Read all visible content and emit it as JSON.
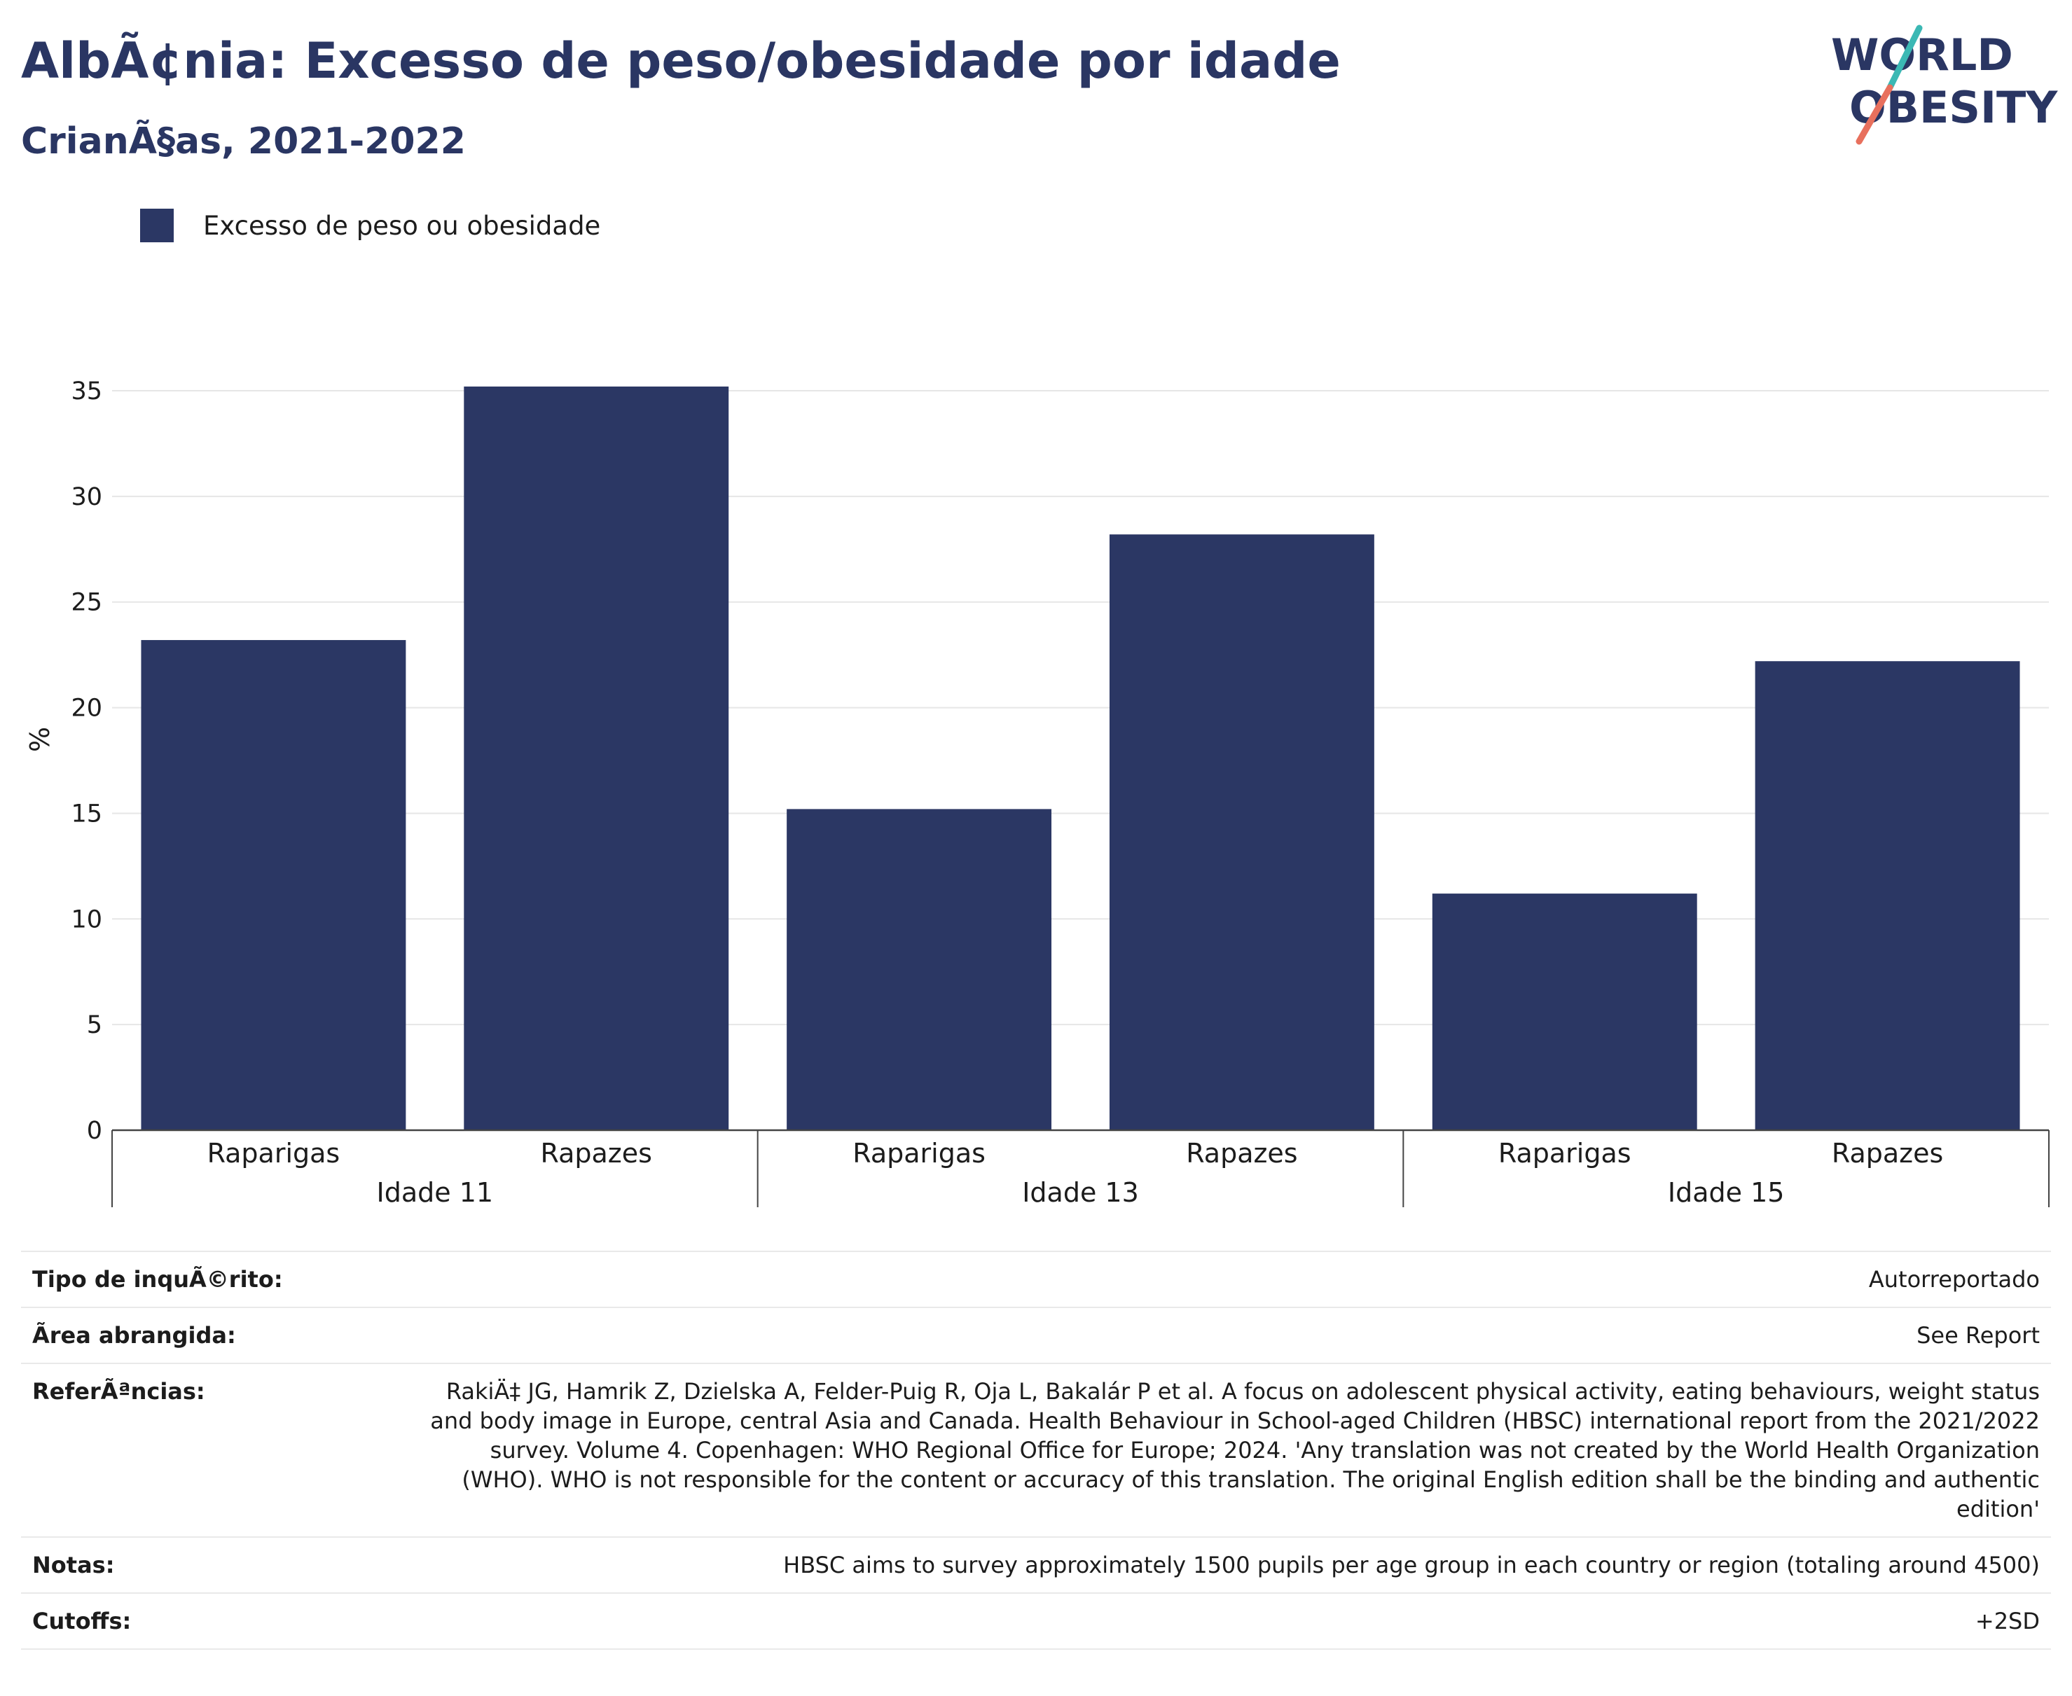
{
  "header": {
    "title": "AlbÃ¢nia: Excesso de peso/obesidade por idade",
    "subtitle": "CrianÃ§as, 2021-2022"
  },
  "logo": {
    "line1": "WORLD",
    "line2": "OBESITY"
  },
  "colors": {
    "bar": "#2b3764",
    "title": "#2a3663",
    "logo_teal": "#3bb8b4",
    "logo_coral": "#e8705d",
    "grid": "#e6e6e6",
    "axis": "#444444"
  },
  "legend": {
    "label": "Excesso de peso ou obesidade"
  },
  "chart_data": {
    "type": "bar",
    "ylabel": "%",
    "ylim": [
      0,
      35.2
    ],
    "yticks": [
      0,
      5,
      10,
      15,
      20,
      25,
      30,
      35
    ],
    "grid": true,
    "legend_position": "top-left",
    "groups": [
      {
        "label": "Idade 11",
        "categories": [
          "Raparigas",
          "Rapazes"
        ],
        "values": [
          23.2,
          35.2
        ]
      },
      {
        "label": "Idade 13",
        "categories": [
          "Raparigas",
          "Rapazes"
        ],
        "values": [
          15.2,
          28.2
        ]
      },
      {
        "label": "Idade 15",
        "categories": [
          "Raparigas",
          "Rapazes"
        ],
        "values": [
          11.2,
          22.2
        ]
      }
    ],
    "series": [
      {
        "name": "Excesso de peso ou obesidade",
        "values": [
          23.2,
          35.2,
          15.2,
          28.2,
          11.2,
          22.2
        ]
      }
    ]
  },
  "meta": {
    "rows": [
      {
        "key": "Tipo de inquÃ©rito:",
        "value": "Autorreportado"
      },
      {
        "key": "Ãrea abrangida:",
        "value": "See Report"
      },
      {
        "key": "ReferÃªncias:",
        "value": "RakiÄ‡ JG, Hamrik Z, Dzielska A, Felder-Puig R, Oja L, Bakalár P et al. A focus on adolescent physical activity, eating behaviours, weight status and body image in Europe, central Asia and Canada. Health Behaviour in School-aged Children (HBSC) international report from the 2021/2022 survey. Volume 4. Copenhagen: WHO Regional Office for Europe; 2024. 'Any translation was not created by the World Health Organization (WHO). WHO is not responsible for the content or accuracy of this translation. The original English edition shall be the binding and authentic edition'"
      },
      {
        "key": "Notas:",
        "value": "HBSC aims to survey approximately 1500 pupils per age group in each country or region (totaling around 4500)"
      },
      {
        "key": "Cutoffs:",
        "value": "+2SD"
      }
    ]
  }
}
